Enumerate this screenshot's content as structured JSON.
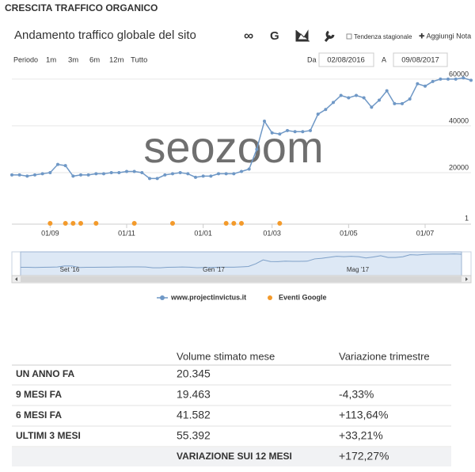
{
  "header": {
    "title": "CRESCITA TRAFFICO ORGANICO"
  },
  "toolbar": {
    "google": "G",
    "seasonal": "Tendenza stagionale",
    "add_note": "✚ Aggiungi Nota"
  },
  "period": {
    "label": "Periodo",
    "options": [
      "1m",
      "3m",
      "6m",
      "12m",
      "Tutto"
    ],
    "from_label": "Da",
    "from": "02/08/2016",
    "to_label": "A",
    "to": "09/08/2017"
  },
  "watermark": "seozoom",
  "chart_data": {
    "type": "line",
    "title": "Andamento traffico globale del sito",
    "categories": [
      null,
      null,
      null,
      null,
      null,
      "01/09",
      null,
      null,
      null,
      null,
      null,
      null,
      null,
      null,
      null,
      "01/11",
      null,
      null,
      null,
      null,
      null,
      null,
      null,
      null,
      null,
      "01/01",
      null,
      null,
      null,
      null,
      null,
      null,
      null,
      null,
      "01/03",
      null,
      null,
      null,
      null,
      null,
      null,
      null,
      null,
      null,
      "01/05",
      null,
      null,
      null,
      null,
      null,
      null,
      null,
      null,
      null,
      "01/07",
      null,
      null,
      null,
      null,
      null,
      null
    ],
    "series": [
      {
        "name": "www.projectinvictus.it",
        "color": "#6f98c6",
        "values": [
          19000,
          19000,
          18500,
          19000,
          19500,
          20000,
          23500,
          23000,
          18500,
          19000,
          19000,
          19500,
          19500,
          20000,
          20000,
          20500,
          20500,
          20000,
          17500,
          17500,
          19000,
          19500,
          20000,
          19500,
          18000,
          18500,
          18500,
          19500,
          19500,
          19500,
          20500,
          21500,
          30000,
          42000,
          37000,
          36500,
          38000,
          37500,
          37500,
          38000,
          45000,
          47000,
          50000,
          53000,
          52000,
          53000,
          52000,
          48000,
          51000,
          55000,
          49500,
          49500,
          51500,
          58000,
          57000,
          59000,
          60000,
          60000,
          60000,
          60500,
          59500
        ]
      },
      {
        "name": "Eventi Google",
        "color": "#f39a2b",
        "axis": "y2",
        "values": [
          null,
          null,
          null,
          null,
          null,
          1,
          null,
          1,
          1,
          1,
          null,
          1,
          null,
          null,
          null,
          null,
          1,
          null,
          null,
          null,
          null,
          1,
          null,
          null,
          null,
          null,
          null,
          null,
          1,
          1,
          1,
          null,
          null,
          null,
          null,
          1,
          null,
          null,
          null,
          null,
          null,
          null,
          null,
          null,
          null,
          null,
          null,
          null,
          null,
          null,
          null,
          null,
          null,
          null,
          null,
          null,
          null,
          null,
          null,
          null,
          null
        ]
      }
    ],
    "ylim": [
      -1700,
      62000
    ],
    "yticks": [
      20000,
      40000,
      60000
    ],
    "y2lim": [
      1,
      2
    ],
    "y2ticks": [
      1
    ],
    "grid": true,
    "legend": "bottom",
    "navigator_labels": [
      "Set '16",
      "Gen '17",
      "Mag '17"
    ]
  },
  "table": {
    "columns": [
      "Volume stimato mese",
      "Variazione trimestre"
    ],
    "rows": [
      {
        "label": "UN ANNO FA",
        "volume": "20.345"
      },
      {
        "label": "9 MESI FA",
        "volume": "19.463",
        "change": "-4,33%",
        "color": "#f08a45"
      },
      {
        "label": "6 MESI FA",
        "volume": "41.582",
        "change": "+113,64%",
        "color": "#5cb85c"
      },
      {
        "label": "ULTIMI 3 MESI",
        "volume": "55.392",
        "change": "+33,21%",
        "color": "#5cb85c"
      }
    ],
    "total": {
      "label": "VARIAZIONE SUI 12 MESI",
      "change": "+172,27%",
      "color": "#5cb85c"
    }
  }
}
